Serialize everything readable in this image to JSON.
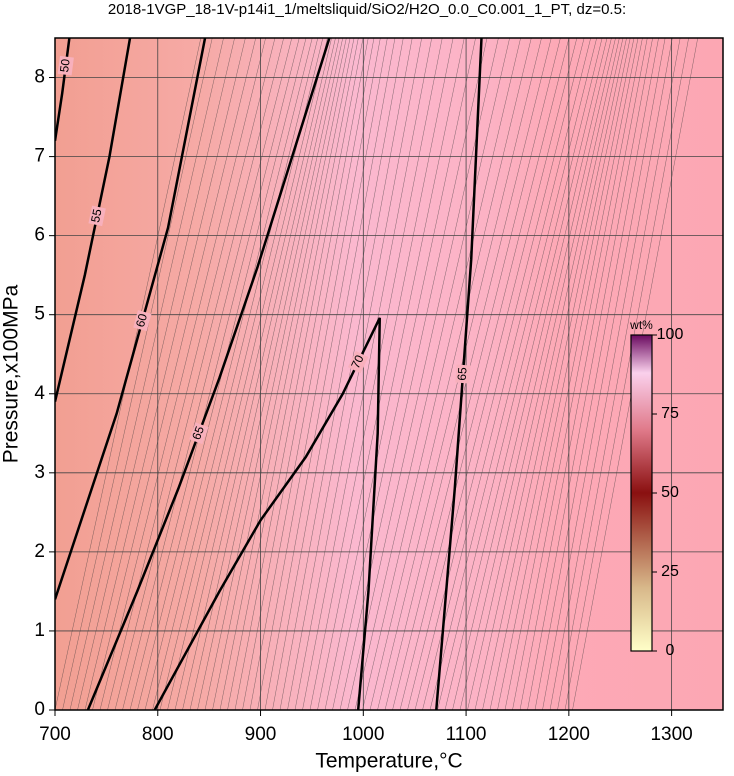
{
  "chart_data": {
    "type": "contour",
    "title": "2018-1VGP_18-1V-p14i1_1/meltsliquid/SiO2/H2O_0.0_C0.001_1_PT, dz=0.5:",
    "xlabel": "Temperature,°C",
    "ylabel": "Pressure,x100MPa",
    "xlim": [
      700,
      1350
    ],
    "ylim": [
      0,
      8.5
    ],
    "xticks": [
      700,
      800,
      900,
      1000,
      1100,
      1200,
      1300
    ],
    "yticks": [
      0,
      1,
      2,
      3,
      4,
      5,
      6,
      7,
      8
    ],
    "grid": true,
    "color": "#000000",
    "contours": [
      {
        "level": 50,
        "x": [
          700,
          707,
          714
        ],
        "y": [
          7.2,
          7.8,
          8.5
        ]
      },
      {
        "level": 55,
        "x": [
          700,
          729,
          753,
          773
        ],
        "y": [
          3.9,
          5.5,
          7.0,
          8.5
        ]
      },
      {
        "level": 60,
        "x": [
          700,
          760,
          810,
          846
        ],
        "y": [
          1.4,
          3.75,
          6.1,
          8.5
        ]
      },
      {
        "level": 65,
        "x": [
          732,
          780,
          820,
          860,
          897,
          967
        ],
        "y": [
          0,
          1.5,
          2.8,
          4.2,
          5.6,
          8.5
        ]
      },
      {
        "level": 70,
        "x": [
          797,
          860,
          900,
          944,
          980,
          1010,
          1016,
          1014,
          1005,
          995
        ],
        "y": [
          0,
          1.5,
          2.4,
          3.2,
          4.0,
          4.8,
          4.96,
          3.5,
          1.5,
          0
        ]
      },
      {
        "level": 65,
        "x": [
          1071,
          1089,
          1105,
          1115
        ],
        "y": [
          0,
          2.8,
          5.7,
          8.5
        ]
      }
    ],
    "colorbar": {
      "label": "wt%",
      "lim": [
        0,
        100
      ],
      "ticks": [
        0,
        25,
        50,
        75,
        100
      ]
    }
  }
}
